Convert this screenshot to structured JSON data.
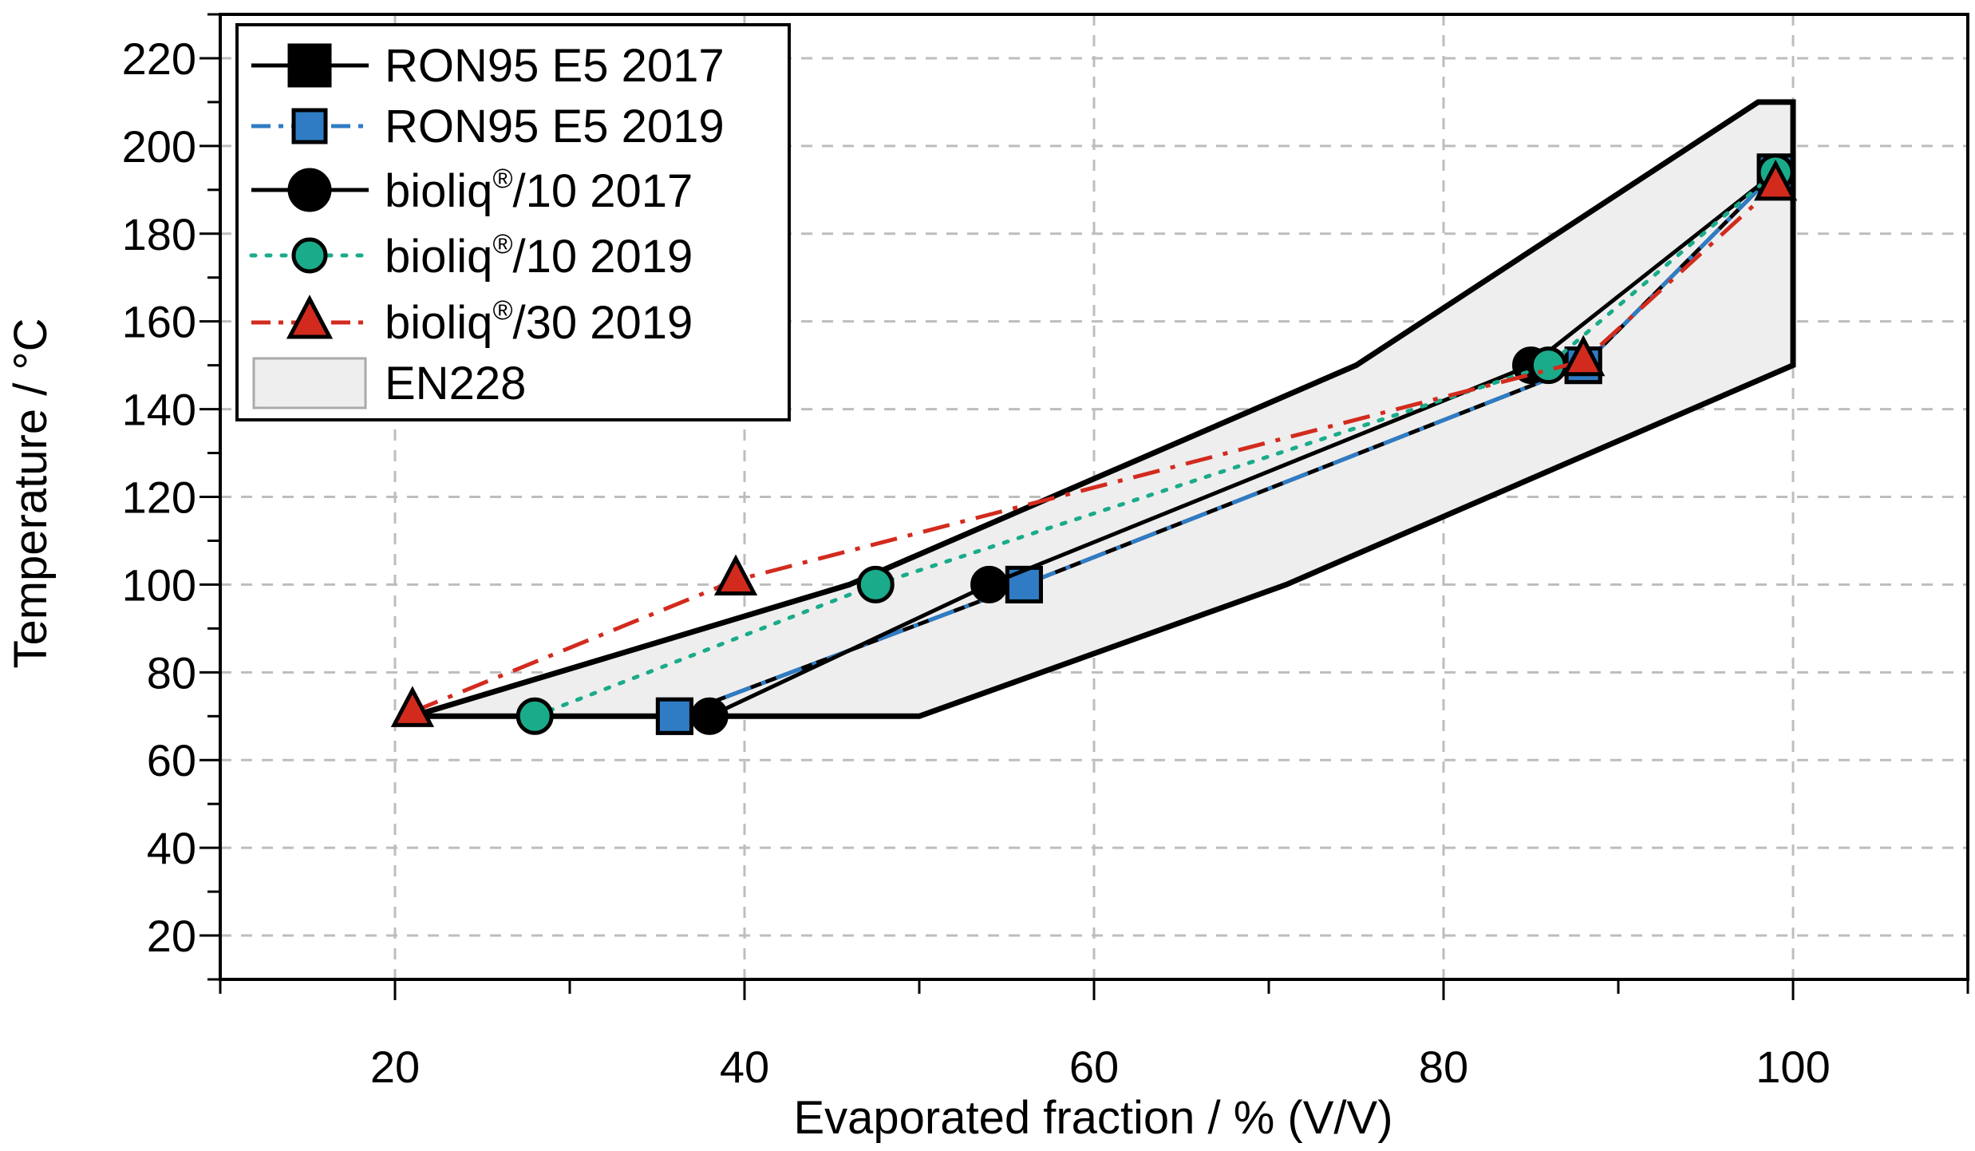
{
  "chart_data": {
    "type": "line",
    "title": "",
    "xlabel": "Evaporated fraction / % (V/V)",
    "ylabel": "Temperature / °C",
    "xlim": [
      10,
      110
    ],
    "ylim": [
      10,
      230
    ],
    "xticks": [
      20,
      40,
      60,
      80,
      100
    ],
    "yticks": [
      20,
      40,
      60,
      80,
      100,
      120,
      140,
      160,
      180,
      200,
      220
    ],
    "grid": true,
    "legend_position": "top-left",
    "region": {
      "name": "EN228",
      "upper": [
        [
          21,
          70
        ],
        [
          46,
          100
        ],
        [
          75,
          150
        ],
        [
          98,
          210
        ],
        [
          100,
          210
        ]
      ],
      "lower": [
        [
          100,
          150
        ],
        [
          71,
          100
        ],
        [
          50,
          70
        ],
        [
          21,
          70
        ]
      ],
      "fill": "#eeeeee",
      "edge": "#000000"
    },
    "series": [
      {
        "name": "RON95 E5 2017",
        "color": "#000000",
        "dash": "solid",
        "marker": "square",
        "marker_fill": "#000000",
        "x": [
          36,
          56,
          88,
          99
        ],
        "y": [
          70,
          100,
          150,
          194
        ]
      },
      {
        "name": "RON95 E5 2019",
        "color": "#2f7cc4",
        "dash": "dashdot",
        "marker": "square",
        "marker_fill": "#2f7cc4",
        "x": [
          36,
          56,
          88,
          99
        ],
        "y": [
          70,
          100,
          150,
          194
        ]
      },
      {
        "name": "bioliq®/10 2017",
        "color": "#000000",
        "dash": "solid",
        "marker": "circle",
        "marker_fill": "#000000",
        "x": [
          38,
          54,
          85,
          99
        ],
        "y": [
          70,
          100,
          150,
          194
        ]
      },
      {
        "name": "bioliq®/10 2019",
        "color": "#1aab8a",
        "dash": "dotted",
        "marker": "circle",
        "marker_fill": "#1aab8a",
        "x": [
          28,
          47.5,
          86,
          99
        ],
        "y": [
          70,
          100,
          150,
          194
        ]
      },
      {
        "name": "bioliq®/30 2019",
        "color": "#d22b1e",
        "dash": "dashdot",
        "marker": "triangle",
        "marker_fill": "#d22b1e",
        "x": [
          21,
          39.5,
          88,
          99
        ],
        "y": [
          71,
          101,
          151,
          191
        ]
      }
    ]
  },
  "legend": {
    "entries": [
      {
        "base": "RON95 E5 2017",
        "sup": "",
        "tail": ""
      },
      {
        "base": "RON95 E5 2019",
        "sup": "",
        "tail": ""
      },
      {
        "base": "bioliq",
        "sup": "®",
        "tail": "/10 2017"
      },
      {
        "base": "bioliq",
        "sup": "®",
        "tail": "/10 2019"
      },
      {
        "base": "bioliq",
        "sup": "®",
        "tail": "/30 2019"
      },
      {
        "base": "EN228",
        "sup": "",
        "tail": ""
      }
    ]
  }
}
